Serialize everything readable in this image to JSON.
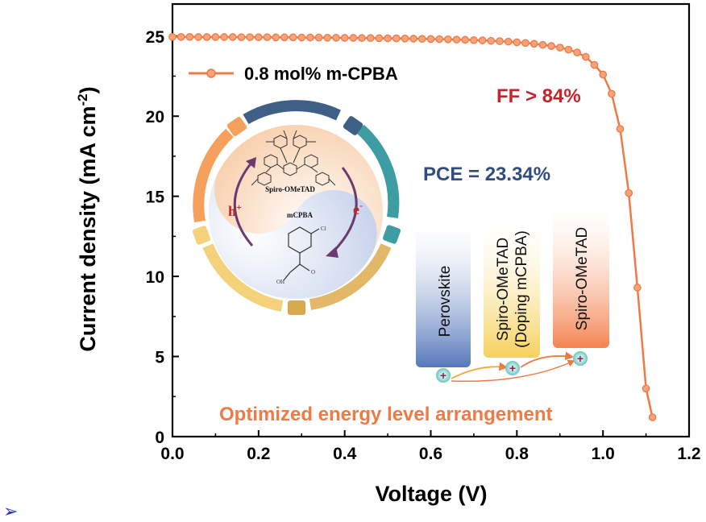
{
  "chart_data": {
    "type": "line",
    "xlabel": "Voltage (V)",
    "ylabel": "Current density (mA cm",
    "ylabel_sup": "-2",
    "ylabel_end": ")",
    "xlim": [
      0.0,
      1.2
    ],
    "ylim": [
      0,
      27
    ],
    "xticks": [
      0.0,
      0.2,
      0.4,
      0.6,
      0.8,
      1.0,
      1.2
    ],
    "xtick_labels": [
      "0.0",
      "0.2",
      "0.4",
      "0.6",
      "0.8",
      "1.0",
      "1.2"
    ],
    "yticks": [
      0,
      5,
      10,
      15,
      20,
      25
    ],
    "ytick_labels": [
      "0",
      "5",
      "10",
      "15",
      "20",
      "25"
    ],
    "grid": false,
    "legend_position": "top-left",
    "series": [
      {
        "name": "0.8 mol% m-CPBA",
        "color": "#F07A45",
        "x": [
          0.0,
          0.02,
          0.04,
          0.06,
          0.08,
          0.1,
          0.12,
          0.14,
          0.16,
          0.18,
          0.2,
          0.22,
          0.24,
          0.26,
          0.28,
          0.3,
          0.32,
          0.34,
          0.36,
          0.38,
          0.4,
          0.42,
          0.44,
          0.46,
          0.48,
          0.5,
          0.52,
          0.54,
          0.56,
          0.58,
          0.6,
          0.62,
          0.64,
          0.66,
          0.68,
          0.7,
          0.72,
          0.74,
          0.76,
          0.78,
          0.8,
          0.82,
          0.84,
          0.86,
          0.88,
          0.9,
          0.92,
          0.94,
          0.96,
          0.98,
          1.0,
          1.02,
          1.04,
          1.06,
          1.08,
          1.1,
          1.115
        ],
        "y": [
          24.95,
          24.95,
          24.95,
          24.94,
          24.94,
          24.94,
          24.94,
          24.94,
          24.93,
          24.93,
          24.93,
          24.93,
          24.92,
          24.92,
          24.92,
          24.91,
          24.91,
          24.91,
          24.9,
          24.9,
          24.89,
          24.89,
          24.88,
          24.88,
          24.87,
          24.86,
          24.86,
          24.85,
          24.84,
          24.83,
          24.82,
          24.81,
          24.8,
          24.78,
          24.77,
          24.75,
          24.73,
          24.7,
          24.68,
          24.65,
          24.61,
          24.57,
          24.52,
          24.45,
          24.38,
          24.28,
          24.15,
          23.98,
          23.7,
          23.2,
          22.6,
          21.4,
          19.2,
          15.2,
          9.3,
          3.0,
          1.2
        ]
      }
    ],
    "annotations": {
      "ff": "FF > 84%",
      "pce": "PCE = 23.34%",
      "energy": "Optimized energy level arrangement"
    },
    "inset_schematic": {
      "molecule_top": "Spiro-OMeTAD",
      "molecule_bottom": "mCPBA",
      "hole_label": "h",
      "hole_sup": "+",
      "electron_label": "e",
      "electron_sup": "-",
      "atom_cl": "Cl",
      "atom_o1": "O",
      "atom_oh": "OH"
    },
    "energy_levels": [
      {
        "label_lines": [
          "Perovskite"
        ],
        "color": "#6F8CC8"
      },
      {
        "label_lines": [
          "Spiro-OMeTAD",
          "(Doping mCPBA)"
        ],
        "color": "#F6D668"
      },
      {
        "label_lines": [
          "Spiro-OMeTAD"
        ],
        "color": "#F48E5C"
      }
    ],
    "colors": {
      "line": "#F07A45",
      "ff_text": "#C8232A",
      "pce_text": "#2F4E7D",
      "energy_text": "#F07A45"
    },
    "corner_glyph": "➢"
  }
}
